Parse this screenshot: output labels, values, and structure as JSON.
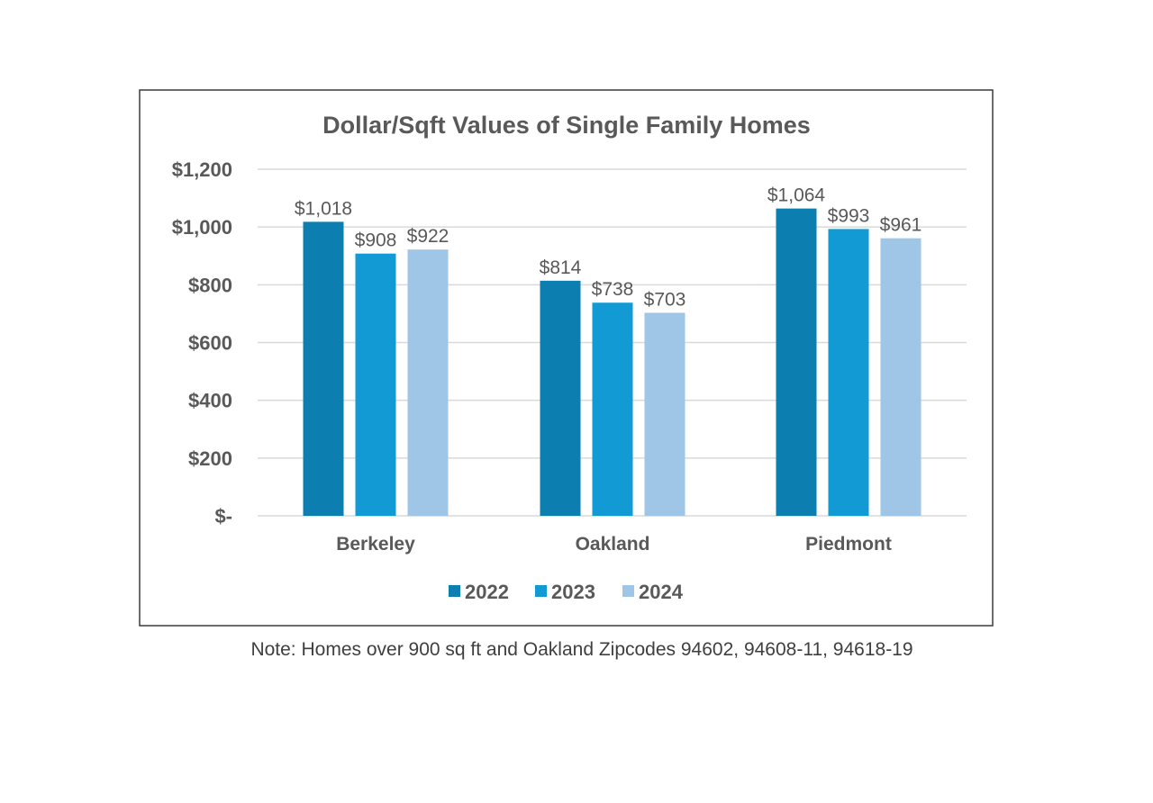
{
  "chart_data": {
    "type": "bar",
    "title": "Dollar/Sqft Values of Single Family Homes",
    "categories": [
      "Berkeley",
      "Oakland",
      "Piedmont"
    ],
    "series": [
      {
        "name": "2022",
        "color": "#0c7fb0",
        "values": [
          1018,
          814,
          1064
        ],
        "labels": [
          "$1,018",
          "$814",
          "$1,064"
        ]
      },
      {
        "name": "2023",
        "color": "#129ad4",
        "values": [
          908,
          738,
          993
        ],
        "labels": [
          "$908",
          "$738",
          "$993"
        ]
      },
      {
        "name": "2024",
        "color": "#9fc6e6",
        "values": [
          922,
          703,
          961
        ],
        "labels": [
          "$922",
          "$703",
          "$961"
        ]
      }
    ],
    "ylim": [
      0,
      1200
    ],
    "yticks": [
      0,
      200,
      400,
      600,
      800,
      1000,
      1200
    ],
    "ytick_labels": [
      "$-",
      "$200",
      "$400",
      "$600",
      "$800",
      "$1,000",
      "$1,200"
    ],
    "xlabel": "",
    "ylabel": "",
    "grid": true,
    "legend_position": "bottom"
  },
  "note": "Note: Homes over 900 sq ft and Oakland Zipcodes 94602, 94608-11, 94618-19"
}
